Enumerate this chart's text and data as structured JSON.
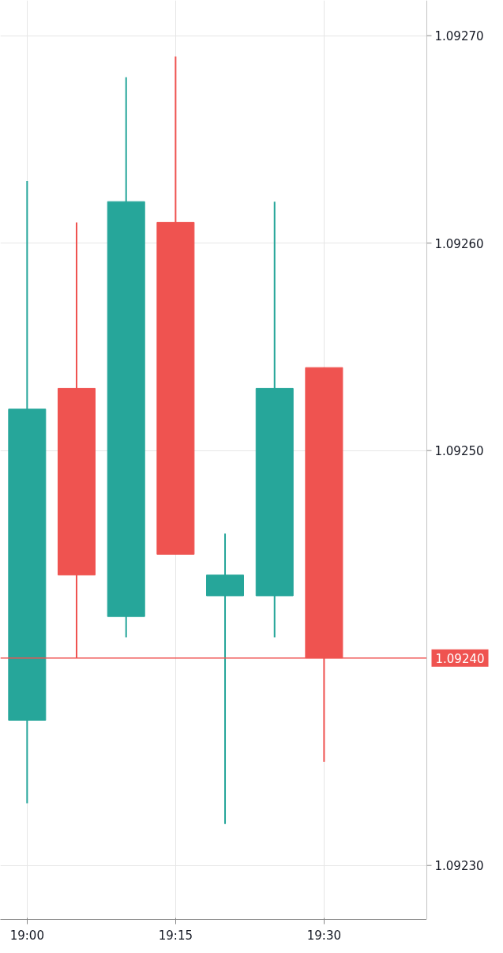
{
  "chart_data": {
    "type": "candlestick",
    "x": [
      19,
      19.0833,
      19.1667,
      19.25,
      19.3333,
      19.4167,
      19.5
    ],
    "ohlc": [
      [
        1.09237,
        1.09263,
        1.09233,
        1.09252
      ],
      [
        1.09253,
        1.09261,
        1.0924,
        1.09244
      ],
      [
        1.09242,
        1.09268,
        1.09241,
        1.09262
      ],
      [
        1.09261,
        1.09269,
        1.09245,
        1.09245
      ],
      [
        1.09243,
        1.09246,
        1.09232,
        1.09244
      ],
      [
        1.09243,
        1.09262,
        1.09241,
        1.09253
      ],
      [
        1.09254,
        1.09254,
        1.09235,
        1.0924
      ]
    ],
    "colors": [
      "#26a69a",
      "#ef5350",
      "#26a69a",
      "#ef5350",
      "#26a69a",
      "#26a69a",
      "#ef5350"
    ],
    "xlim": [
      18.955,
      19.673
    ],
    "xticks": [
      {
        "value": 19,
        "label": "19:00"
      },
      {
        "value": 19.25,
        "label": "19:15"
      },
      {
        "value": 19.5,
        "label": "19:30"
      }
    ],
    "ylim": [
      1.092274,
      1.092717
    ],
    "yticks": [
      {
        "value": 1.0923,
        "label": "1.09230"
      },
      {
        "value": 1.0925,
        "label": "1.09250"
      },
      {
        "value": 1.0926,
        "label": "1.09260"
      },
      {
        "value": 1.0927,
        "label": "1.09270"
      }
    ],
    "ref_lines": [
      {
        "axis": "y",
        "value": 1.0924,
        "label": "1.09240",
        "color": "#ef5350"
      }
    ],
    "grid": true
  }
}
